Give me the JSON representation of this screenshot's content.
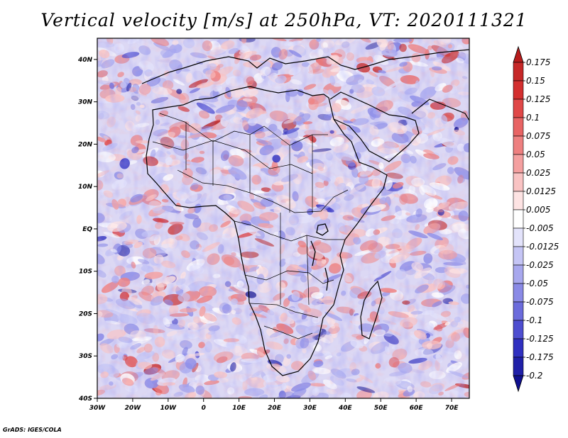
{
  "title": "Vertical velocity [m/s] at 250hPa, VT: 2020111321",
  "footer": "GrADS: IGES/COLA",
  "map": {
    "lon_range": [
      -30,
      75
    ],
    "lat_range": [
      -40,
      45
    ],
    "lon_ticks": [
      "30W",
      "20W",
      "10W",
      "0",
      "10E",
      "20E",
      "30E",
      "40E",
      "50E",
      "60E",
      "70E"
    ],
    "lat_ticks": [
      "40N",
      "30N",
      "20N",
      "10N",
      "EQ",
      "10S",
      "20S",
      "30S",
      "40S"
    ]
  },
  "colorbar": {
    "levels": [
      "0.175",
      "0.15",
      "0.125",
      "0.1",
      "0.075",
      "0.05",
      "0.025",
      "0.0125",
      "0.005",
      "-0.005",
      "-0.0125",
      "-0.025",
      "-0.05",
      "-0.075",
      "-0.1",
      "-0.125",
      "-0.175",
      "-0.2"
    ],
    "colors": [
      "#b71c1c",
      "#c62828",
      "#d32f2f",
      "#e04848",
      "#e86464",
      "#ee8080",
      "#f4a0a0",
      "#f9c3c3",
      "#fde3e3",
      "#ffffff",
      "#e3e3fb",
      "#c5c5f5",
      "#a8a8ee",
      "#8a8ae6",
      "#6c6cdc",
      "#4e4ed0",
      "#3030c0",
      "#2020a8",
      "#101090"
    ]
  },
  "colors": {
    "ocean_red": "#f1a5a5",
    "ocean_blue": "#a8a8ef",
    "land_blue": "#9e9ee8",
    "border": "#000000"
  }
}
